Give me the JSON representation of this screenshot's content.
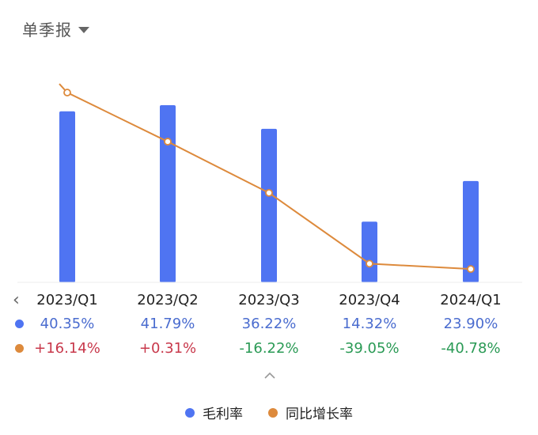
{
  "period_selector": {
    "label": "单季报"
  },
  "colors": {
    "bar": "#4f74f2",
    "line": "#dd8a3c",
    "text_blue": "#4a6ccf",
    "text_red": "#c8384b",
    "text_green": "#2a9a55"
  },
  "chart_data": {
    "type": "bar+line",
    "categories": [
      "2023/Q1",
      "2023/Q2",
      "2023/Q3",
      "2023/Q4",
      "2024/Q1"
    ],
    "series": [
      {
        "name": "毛利率",
        "type": "bar",
        "values": [
          40.35,
          41.79,
          36.22,
          14.32,
          23.9
        ],
        "labels": [
          "40.35%",
          "41.79%",
          "36.22%",
          "14.32%",
          "23.90%"
        ]
      },
      {
        "name": "同比增长率",
        "type": "line",
        "values": [
          16.14,
          0.31,
          -16.22,
          -39.05,
          -40.78
        ],
        "labels": [
          "+16.14%",
          "+0.31%",
          "-16.22%",
          "-39.05%",
          "-40.78%"
        ]
      }
    ]
  },
  "legend": [
    "毛利率",
    "同比增长率"
  ]
}
